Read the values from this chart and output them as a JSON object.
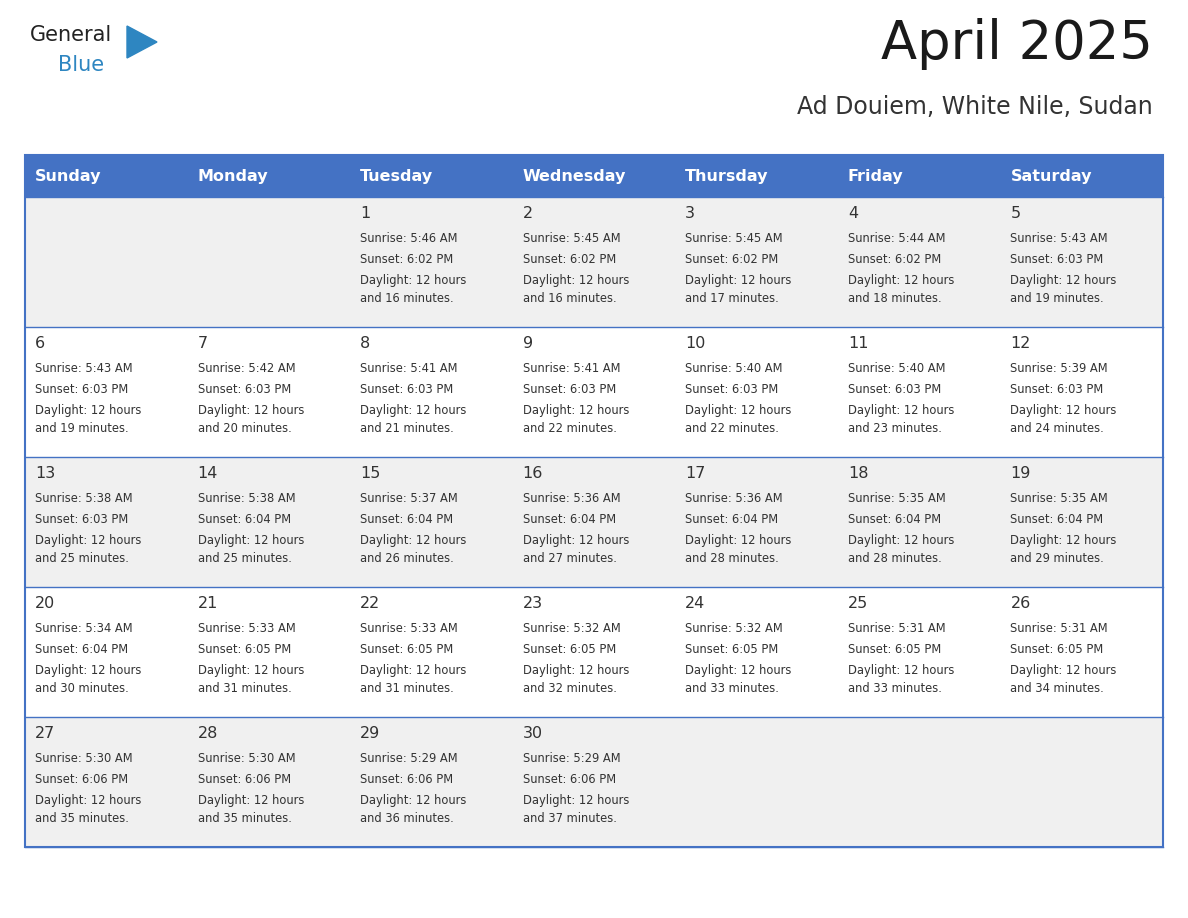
{
  "title": "April 2025",
  "subtitle": "Ad Douiem, White Nile, Sudan",
  "header_bg": "#4472C4",
  "header_text_color": "#FFFFFF",
  "days_of_week": [
    "Sunday",
    "Monday",
    "Tuesday",
    "Wednesday",
    "Thursday",
    "Friday",
    "Saturday"
  ],
  "row_bg_odd": "#F0F0F0",
  "row_bg_even": "#FFFFFF",
  "border_color": "#4472C4",
  "text_color": "#333333",
  "cal_data": [
    [
      {
        "day": "",
        "sunrise": "",
        "sunset": "",
        "daylight": ""
      },
      {
        "day": "",
        "sunrise": "",
        "sunset": "",
        "daylight": ""
      },
      {
        "day": "1",
        "sunrise": "Sunrise: 5:46 AM",
        "sunset": "Sunset: 6:02 PM",
        "daylight": "Daylight: 12 hours\nand 16 minutes."
      },
      {
        "day": "2",
        "sunrise": "Sunrise: 5:45 AM",
        "sunset": "Sunset: 6:02 PM",
        "daylight": "Daylight: 12 hours\nand 16 minutes."
      },
      {
        "day": "3",
        "sunrise": "Sunrise: 5:45 AM",
        "sunset": "Sunset: 6:02 PM",
        "daylight": "Daylight: 12 hours\nand 17 minutes."
      },
      {
        "day": "4",
        "sunrise": "Sunrise: 5:44 AM",
        "sunset": "Sunset: 6:02 PM",
        "daylight": "Daylight: 12 hours\nand 18 minutes."
      },
      {
        "day": "5",
        "sunrise": "Sunrise: 5:43 AM",
        "sunset": "Sunset: 6:03 PM",
        "daylight": "Daylight: 12 hours\nand 19 minutes."
      }
    ],
    [
      {
        "day": "6",
        "sunrise": "Sunrise: 5:43 AM",
        "sunset": "Sunset: 6:03 PM",
        "daylight": "Daylight: 12 hours\nand 19 minutes."
      },
      {
        "day": "7",
        "sunrise": "Sunrise: 5:42 AM",
        "sunset": "Sunset: 6:03 PM",
        "daylight": "Daylight: 12 hours\nand 20 minutes."
      },
      {
        "day": "8",
        "sunrise": "Sunrise: 5:41 AM",
        "sunset": "Sunset: 6:03 PM",
        "daylight": "Daylight: 12 hours\nand 21 minutes."
      },
      {
        "day": "9",
        "sunrise": "Sunrise: 5:41 AM",
        "sunset": "Sunset: 6:03 PM",
        "daylight": "Daylight: 12 hours\nand 22 minutes."
      },
      {
        "day": "10",
        "sunrise": "Sunrise: 5:40 AM",
        "sunset": "Sunset: 6:03 PM",
        "daylight": "Daylight: 12 hours\nand 22 minutes."
      },
      {
        "day": "11",
        "sunrise": "Sunrise: 5:40 AM",
        "sunset": "Sunset: 6:03 PM",
        "daylight": "Daylight: 12 hours\nand 23 minutes."
      },
      {
        "day": "12",
        "sunrise": "Sunrise: 5:39 AM",
        "sunset": "Sunset: 6:03 PM",
        "daylight": "Daylight: 12 hours\nand 24 minutes."
      }
    ],
    [
      {
        "day": "13",
        "sunrise": "Sunrise: 5:38 AM",
        "sunset": "Sunset: 6:03 PM",
        "daylight": "Daylight: 12 hours\nand 25 minutes."
      },
      {
        "day": "14",
        "sunrise": "Sunrise: 5:38 AM",
        "sunset": "Sunset: 6:04 PM",
        "daylight": "Daylight: 12 hours\nand 25 minutes."
      },
      {
        "day": "15",
        "sunrise": "Sunrise: 5:37 AM",
        "sunset": "Sunset: 6:04 PM",
        "daylight": "Daylight: 12 hours\nand 26 minutes."
      },
      {
        "day": "16",
        "sunrise": "Sunrise: 5:36 AM",
        "sunset": "Sunset: 6:04 PM",
        "daylight": "Daylight: 12 hours\nand 27 minutes."
      },
      {
        "day": "17",
        "sunrise": "Sunrise: 5:36 AM",
        "sunset": "Sunset: 6:04 PM",
        "daylight": "Daylight: 12 hours\nand 28 minutes."
      },
      {
        "day": "18",
        "sunrise": "Sunrise: 5:35 AM",
        "sunset": "Sunset: 6:04 PM",
        "daylight": "Daylight: 12 hours\nand 28 minutes."
      },
      {
        "day": "19",
        "sunrise": "Sunrise: 5:35 AM",
        "sunset": "Sunset: 6:04 PM",
        "daylight": "Daylight: 12 hours\nand 29 minutes."
      }
    ],
    [
      {
        "day": "20",
        "sunrise": "Sunrise: 5:34 AM",
        "sunset": "Sunset: 6:04 PM",
        "daylight": "Daylight: 12 hours\nand 30 minutes."
      },
      {
        "day": "21",
        "sunrise": "Sunrise: 5:33 AM",
        "sunset": "Sunset: 6:05 PM",
        "daylight": "Daylight: 12 hours\nand 31 minutes."
      },
      {
        "day": "22",
        "sunrise": "Sunrise: 5:33 AM",
        "sunset": "Sunset: 6:05 PM",
        "daylight": "Daylight: 12 hours\nand 31 minutes."
      },
      {
        "day": "23",
        "sunrise": "Sunrise: 5:32 AM",
        "sunset": "Sunset: 6:05 PM",
        "daylight": "Daylight: 12 hours\nand 32 minutes."
      },
      {
        "day": "24",
        "sunrise": "Sunrise: 5:32 AM",
        "sunset": "Sunset: 6:05 PM",
        "daylight": "Daylight: 12 hours\nand 33 minutes."
      },
      {
        "day": "25",
        "sunrise": "Sunrise: 5:31 AM",
        "sunset": "Sunset: 6:05 PM",
        "daylight": "Daylight: 12 hours\nand 33 minutes."
      },
      {
        "day": "26",
        "sunrise": "Sunrise: 5:31 AM",
        "sunset": "Sunset: 6:05 PM",
        "daylight": "Daylight: 12 hours\nand 34 minutes."
      }
    ],
    [
      {
        "day": "27",
        "sunrise": "Sunrise: 5:30 AM",
        "sunset": "Sunset: 6:06 PM",
        "daylight": "Daylight: 12 hours\nand 35 minutes."
      },
      {
        "day": "28",
        "sunrise": "Sunrise: 5:30 AM",
        "sunset": "Sunset: 6:06 PM",
        "daylight": "Daylight: 12 hours\nand 35 minutes."
      },
      {
        "day": "29",
        "sunrise": "Sunrise: 5:29 AM",
        "sunset": "Sunset: 6:06 PM",
        "daylight": "Daylight: 12 hours\nand 36 minutes."
      },
      {
        "day": "30",
        "sunrise": "Sunrise: 5:29 AM",
        "sunset": "Sunset: 6:06 PM",
        "daylight": "Daylight: 12 hours\nand 37 minutes."
      },
      {
        "day": "",
        "sunrise": "",
        "sunset": "",
        "daylight": ""
      },
      {
        "day": "",
        "sunrise": "",
        "sunset": "",
        "daylight": ""
      },
      {
        "day": "",
        "sunrise": "",
        "sunset": "",
        "daylight": ""
      }
    ]
  ],
  "logo_text1": "General",
  "logo_text2": "Blue",
  "logo_text1_color": "#222222",
  "logo_text2_color": "#2E86C1",
  "logo_triangle_color": "#2E86C1",
  "fig_width": 11.88,
  "fig_height": 9.18,
  "dpi": 100
}
